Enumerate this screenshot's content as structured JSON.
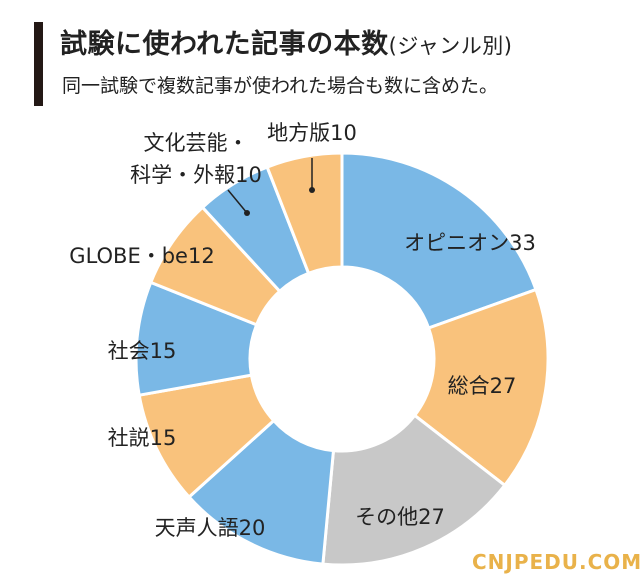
{
  "header": {
    "title": "試験に使われた記事の本数",
    "title_note": "(ジャンル別)",
    "subtitle": "同一試験で複数記事が使われた場合も数に含めた。"
  },
  "chart_data": {
    "type": "pie",
    "style": "donut",
    "categories": [
      "オピニオン",
      "総合",
      "その他",
      "天声人語",
      "社説",
      "社会",
      "GLOBE・be",
      "文化芸能・科学・外報",
      "地方版"
    ],
    "label_text": [
      "オピニオン33",
      "総合27",
      "その他27",
      "天声人語20",
      "社説15",
      "社会15",
      "GLOBE・be12",
      [
        "文化芸能・",
        "科学・外報10"
      ],
      "地方版10"
    ],
    "values": [
      33,
      27,
      27,
      20,
      15,
      15,
      12,
      10,
      10
    ],
    "colors": [
      "#7ab8e6",
      "#f9c27c",
      "#c8c8c8",
      "#7ab8e6",
      "#f9c27c",
      "#7ab8e6",
      "#f9c27c",
      "#7ab8e6",
      "#f9c27c"
    ],
    "start": "12 o'clock",
    "direction": "clockwise"
  },
  "watermark": "CNJPEDU.COM"
}
